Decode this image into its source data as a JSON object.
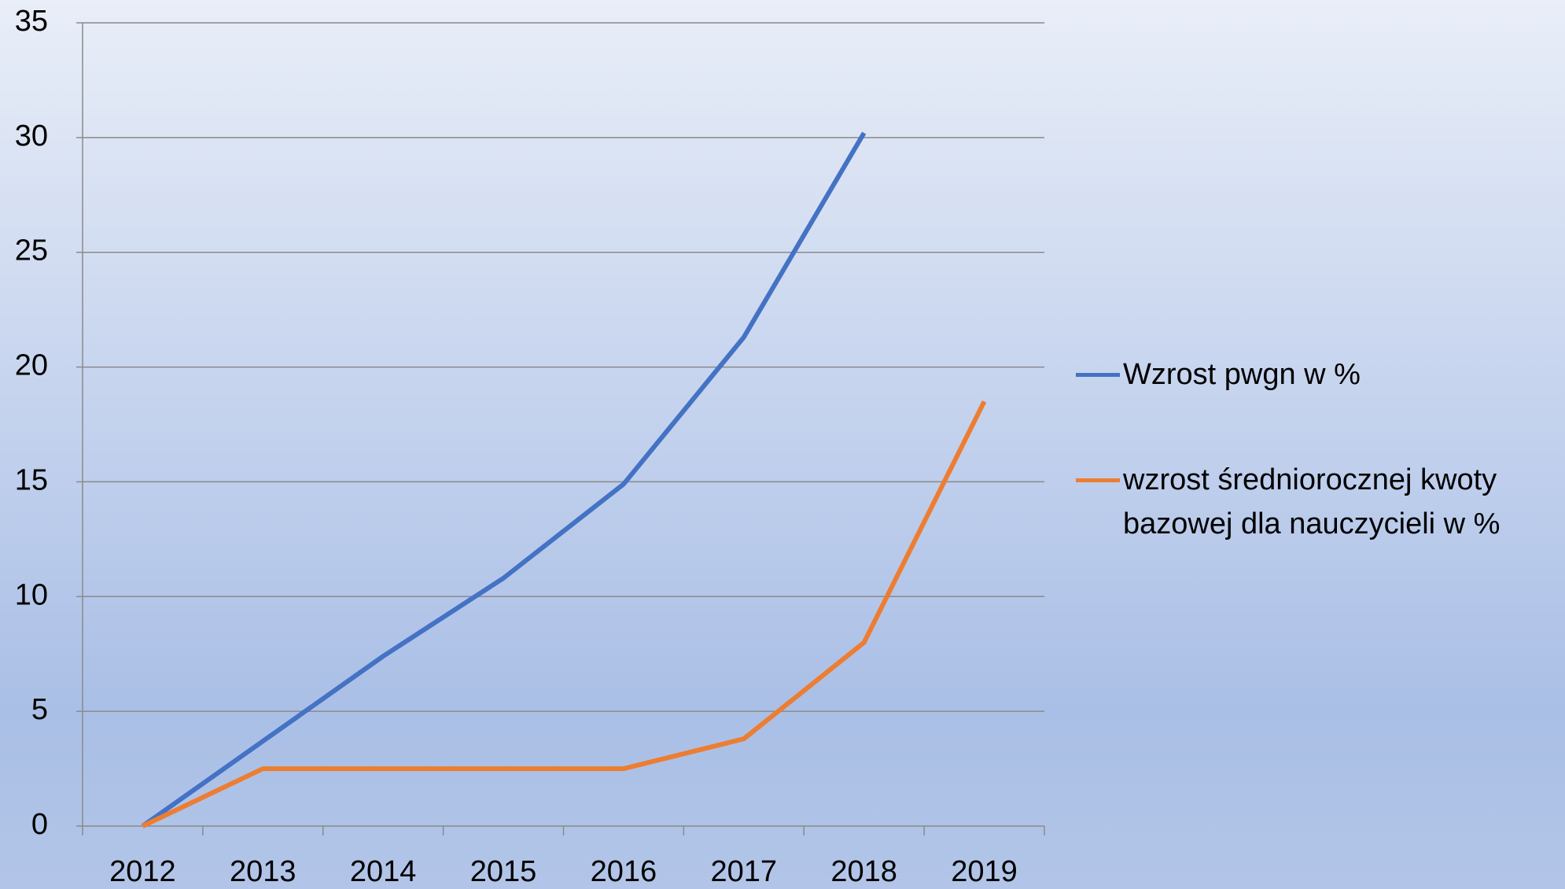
{
  "chart_data": {
    "type": "line",
    "categories": [
      "2012",
      "2013",
      "2014",
      "2015",
      "2016",
      "2017",
      "2018",
      "2019"
    ],
    "series": [
      {
        "name": "Wzrost pwgn w %",
        "color": "#4472c4",
        "values": [
          0,
          3.7,
          7.4,
          10.8,
          14.9,
          21.3,
          30.2,
          null
        ]
      },
      {
        "name": "wzrost średniorocznej kwoty bazowej dla nauczycieli w %",
        "color": "#ed7d31",
        "values": [
          0,
          2.5,
          2.5,
          2.5,
          2.5,
          3.8,
          8.0,
          18.5
        ]
      }
    ],
    "ylim": [
      0,
      35
    ],
    "yticks": [
      0,
      5,
      10,
      15,
      20,
      25,
      30,
      35
    ],
    "grid": true,
    "legend": "right"
  }
}
